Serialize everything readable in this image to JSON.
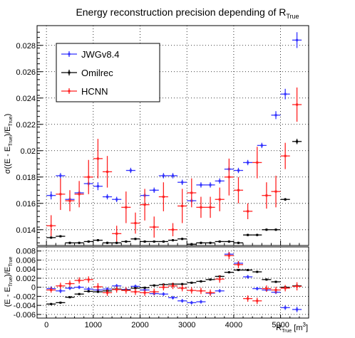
{
  "chart_data": {
    "type": "scatter",
    "title": {
      "text": "Energy reconstruction precision depending of R",
      "sub": "True"
    },
    "xlabel": {
      "text": "R",
      "sub": "True",
      "unit_open": " [m",
      "unit_sup": "3",
      "unit_close": "]"
    },
    "top_ylabel": {
      "p1": "σ((E - E",
      "s1": "True",
      "p2": ")/E",
      "s2": "True",
      "p3": ")"
    },
    "bottom_ylabel": {
      "p1": "(E - E",
      "s1": "True",
      "p2": ")/E",
      "s2": "True"
    },
    "xlim": [
      -200,
      5600
    ],
    "top_ylim": [
      0.0128,
      0.0295
    ],
    "bottom_ylim": [
      -0.0068,
      0.0089
    ],
    "x_ticks": [
      0,
      1000,
      2000,
      3000,
      4000,
      5000
    ],
    "x_tick_labels": [
      "0",
      "1000",
      "2000",
      "3000",
      "4000",
      "5000"
    ],
    "top_y_ticks": [
      0.014,
      0.016,
      0.018,
      0.02,
      0.022,
      0.024,
      0.026,
      0.028
    ],
    "top_y_tick_labels": [
      "0.014",
      "0.016",
      "0.018",
      "0.02",
      "0.022",
      "0.024",
      "0.026",
      "0.028"
    ],
    "bottom_y_ticks": [
      -0.006,
      -0.004,
      -0.002,
      0,
      0.002,
      0.004,
      0.006,
      0.008
    ],
    "bottom_y_tick_labels": [
      "-0.006",
      "-0.004",
      "-0.002",
      "0",
      "0.002",
      "0.004",
      "0.006",
      "0.008"
    ],
    "bin_half_width": 100,
    "grid": true,
    "legend_position": "top-left",
    "top_panel": [
      {
        "name": "JWGv8.4",
        "color": "#3333ff",
        "points": [
          [
            100,
            0.0166,
            0.0003
          ],
          [
            300,
            0.0181,
            0.0002
          ],
          [
            500,
            0.0163,
            0.0002
          ],
          [
            700,
            0.0168,
            0.0002
          ],
          [
            900,
            0.0175,
            0.0002
          ],
          [
            1100,
            0.0173,
            0.0003
          ],
          [
            1300,
            0.0165,
            0.0002
          ],
          [
            1500,
            0.0163,
            0.0002
          ],
          [
            1800,
            0.0185,
            0.0002
          ],
          [
            2100,
            0.0166,
            0.0002
          ],
          [
            2300,
            0.017,
            0.0002
          ],
          [
            2500,
            0.0181,
            0.0002
          ],
          [
            2700,
            0.0181,
            0.0002
          ],
          [
            2900,
            0.0176,
            0.0002
          ],
          [
            3100,
            0.0162,
            0.0002
          ],
          [
            3300,
            0.0174,
            0.0002
          ],
          [
            3500,
            0.0174,
            0.0002
          ],
          [
            3700,
            0.0177,
            0.0002
          ],
          [
            3900,
            0.0186,
            0.0002
          ],
          [
            4100,
            0.0185,
            0.0002
          ],
          [
            4300,
            0.0191,
            0.0002
          ],
          [
            4600,
            0.0204,
            0.0002
          ],
          [
            4900,
            0.0227,
            0.0003
          ],
          [
            5100,
            0.0243,
            0.0004
          ],
          [
            5350,
            0.0284,
            0.0006
          ]
        ]
      },
      {
        "name": "Omilrec",
        "color": "#000000",
        "points": [
          [
            100,
            0.0134,
            8e-05
          ],
          [
            300,
            0.0135,
            8e-05
          ],
          [
            500,
            0.013,
            8e-05
          ],
          [
            700,
            0.013,
            8e-05
          ],
          [
            900,
            0.0131,
            8e-05
          ],
          [
            1100,
            0.0132,
            8e-05
          ],
          [
            1300,
            0.013,
            8e-05
          ],
          [
            1500,
            0.013,
            8e-05
          ],
          [
            1700,
            0.0131,
            8e-05
          ],
          [
            1900,
            0.0133,
            8e-05
          ],
          [
            2100,
            0.0131,
            8e-05
          ],
          [
            2300,
            0.0131,
            8e-05
          ],
          [
            2500,
            0.0131,
            8e-05
          ],
          [
            2700,
            0.0132,
            8e-05
          ],
          [
            2900,
            0.0133,
            8e-05
          ],
          [
            3100,
            0.0129,
            8e-05
          ],
          [
            3300,
            0.013,
            8e-05
          ],
          [
            3500,
            0.013,
            8e-05
          ],
          [
            3700,
            0.0131,
            8e-05
          ],
          [
            3900,
            0.0131,
            8e-05
          ],
          [
            4100,
            0.013,
            8e-05
          ],
          [
            4300,
            0.0136,
            8e-05
          ],
          [
            4500,
            0.0136,
            8e-05
          ],
          [
            4700,
            0.014,
            8e-05
          ],
          [
            4900,
            0.014,
            8e-05
          ],
          [
            5100,
            0.0163,
            0.0001
          ],
          [
            5350,
            0.0207,
            0.0002
          ]
        ]
      },
      {
        "name": "HCNN",
        "color": "#ff2222",
        "points": [
          [
            100,
            0.0143,
            0.0008
          ],
          [
            300,
            0.0167,
            0.0012
          ],
          [
            500,
            0.0162,
            0.0008
          ],
          [
            700,
            0.0167,
            0.001
          ],
          [
            900,
            0.018,
            0.0013
          ],
          [
            1100,
            0.0194,
            0.0015
          ],
          [
            1300,
            0.0184,
            0.0012
          ],
          [
            1500,
            0.0137,
            0.0006
          ],
          [
            1700,
            0.0157,
            0.0012
          ],
          [
            1900,
            0.0145,
            0.0008
          ],
          [
            2100,
            0.0159,
            0.0012
          ],
          [
            2300,
            0.0142,
            0.0008
          ],
          [
            2500,
            0.0165,
            0.0011
          ],
          [
            2700,
            0.014,
            0.0005
          ],
          [
            2900,
            0.0158,
            0.0013
          ],
          [
            3100,
            0.0168,
            0.0011
          ],
          [
            3300,
            0.0157,
            0.0008
          ],
          [
            3500,
            0.0157,
            0.0008
          ],
          [
            3700,
            0.0163,
            0.0009
          ],
          [
            3900,
            0.018,
            0.0014
          ],
          [
            4100,
            0.017,
            0.001
          ],
          [
            4300,
            0.0154,
            0.0006
          ],
          [
            4500,
            0.0191,
            0.0012
          ],
          [
            4700,
            0.0166,
            0.001
          ],
          [
            4900,
            0.0169,
            0.0012
          ],
          [
            5100,
            0.0196,
            0.001
          ],
          [
            5350,
            0.0235,
            0.0013
          ]
        ]
      }
    ],
    "bottom_panel": [
      {
        "name": "JWGv8.4",
        "color": "#3333ff",
        "points": [
          [
            100,
            -0.0003,
            0.0005
          ],
          [
            300,
            -0.0008,
            0.0005
          ],
          [
            500,
            -0.0002,
            0.0004
          ],
          [
            700,
            0.0,
            0.0004
          ],
          [
            900,
            -0.0004,
            0.0004
          ],
          [
            1100,
            -0.0006,
            0.0004
          ],
          [
            1300,
            -0.0004,
            0.0004
          ],
          [
            1500,
            0.0003,
            0.0004
          ],
          [
            1700,
            -0.0005,
            0.0004
          ],
          [
            1900,
            0.0002,
            0.0004
          ],
          [
            2100,
            -0.0006,
            0.0004
          ],
          [
            2300,
            -0.0014,
            0.0004
          ],
          [
            2500,
            -0.0015,
            0.0004
          ],
          [
            2700,
            -0.0023,
            0.0004
          ],
          [
            2900,
            -0.003,
            0.0004
          ],
          [
            3100,
            -0.0034,
            0.0004
          ],
          [
            3300,
            -0.0032,
            0.0004
          ],
          [
            3500,
            -0.0013,
            0.0004
          ],
          [
            3700,
            -0.0008,
            0.0004
          ],
          [
            3900,
            0.0073,
            0.0005
          ],
          [
            4100,
            0.0053,
            0.0005
          ],
          [
            4300,
            0.0023,
            0.0004
          ],
          [
            4500,
            -0.0003,
            0.0004
          ],
          [
            4700,
            -0.0006,
            0.0004
          ],
          [
            4900,
            -0.0011,
            0.0004
          ],
          [
            5100,
            -0.0045,
            0.0005
          ],
          [
            5350,
            -0.0049,
            0.0006
          ]
        ]
      },
      {
        "name": "Omilrec",
        "color": "#000000",
        "points": [
          [
            100,
            -0.0037,
            0.0002
          ],
          [
            300,
            -0.0034,
            0.0002
          ],
          [
            500,
            -0.0022,
            0.0002
          ],
          [
            700,
            -0.0015,
            0.0002
          ],
          [
            900,
            -0.0009,
            0.0002
          ],
          [
            1100,
            -0.001,
            0.0002
          ],
          [
            1300,
            -0.0008,
            0.0002
          ],
          [
            1500,
            -0.0004,
            0.0002
          ],
          [
            1700,
            -0.0006,
            0.0002
          ],
          [
            1900,
            -0.0002,
            0.0002
          ],
          [
            2100,
            -0.0001,
            0.0002
          ],
          [
            2300,
            0.0004,
            0.0002
          ],
          [
            2500,
            0.0006,
            0.0002
          ],
          [
            2700,
            0.0007,
            0.0002
          ],
          [
            2900,
            0.0007,
            0.0002
          ],
          [
            3100,
            0.001,
            0.0002
          ],
          [
            3300,
            0.0013,
            0.0002
          ],
          [
            3500,
            0.0017,
            0.0002
          ],
          [
            3700,
            0.0024,
            0.0002
          ],
          [
            3900,
            0.0033,
            0.0002
          ],
          [
            4100,
            0.0038,
            0.0002
          ],
          [
            4300,
            0.0038,
            0.0002
          ],
          [
            4500,
            0.0034,
            0.0002
          ],
          [
            4700,
            0.0017,
            0.0002
          ],
          [
            4900,
            0.0012,
            0.0002
          ],
          [
            5100,
            0.0,
            0.0002
          ],
          [
            5350,
            0.0003,
            0.0003
          ]
        ]
      },
      {
        "name": "HCNN",
        "color": "#ff2222",
        "points": [
          [
            100,
            -0.0006,
            0.0006
          ],
          [
            300,
            0.0003,
            0.0007
          ],
          [
            500,
            0.0008,
            0.0007
          ],
          [
            700,
            0.0015,
            0.0007
          ],
          [
            900,
            0.0017,
            0.0007
          ],
          [
            1100,
            0.0001,
            0.0008
          ],
          [
            1300,
            -0.0012,
            0.0007
          ],
          [
            1500,
            -0.0005,
            0.0007
          ],
          [
            1700,
            -0.0007,
            0.0007
          ],
          [
            1900,
            -0.001,
            0.0007
          ],
          [
            2100,
            -0.0012,
            0.0007
          ],
          [
            2300,
            -0.001,
            0.0007
          ],
          [
            2500,
            0.0,
            0.0007
          ],
          [
            2700,
            0.0003,
            0.0007
          ],
          [
            2900,
            -0.0002,
            0.0007
          ],
          [
            3100,
            -0.0007,
            0.0007
          ],
          [
            3300,
            -0.0008,
            0.0007
          ],
          [
            3500,
            -0.0012,
            0.0007
          ],
          [
            3700,
            0.0018,
            0.0008
          ],
          [
            3900,
            0.007,
            0.0008
          ],
          [
            4100,
            0.005,
            0.0008
          ],
          [
            4300,
            -0.0025,
            0.0007
          ],
          [
            4500,
            -0.003,
            0.0007
          ],
          [
            4700,
            -0.0003,
            0.0007
          ],
          [
            4900,
            -0.0006,
            0.0007
          ],
          [
            5100,
            -0.0002,
            0.0007
          ],
          [
            5350,
            0.0002,
            0.0009
          ]
        ]
      }
    ]
  }
}
